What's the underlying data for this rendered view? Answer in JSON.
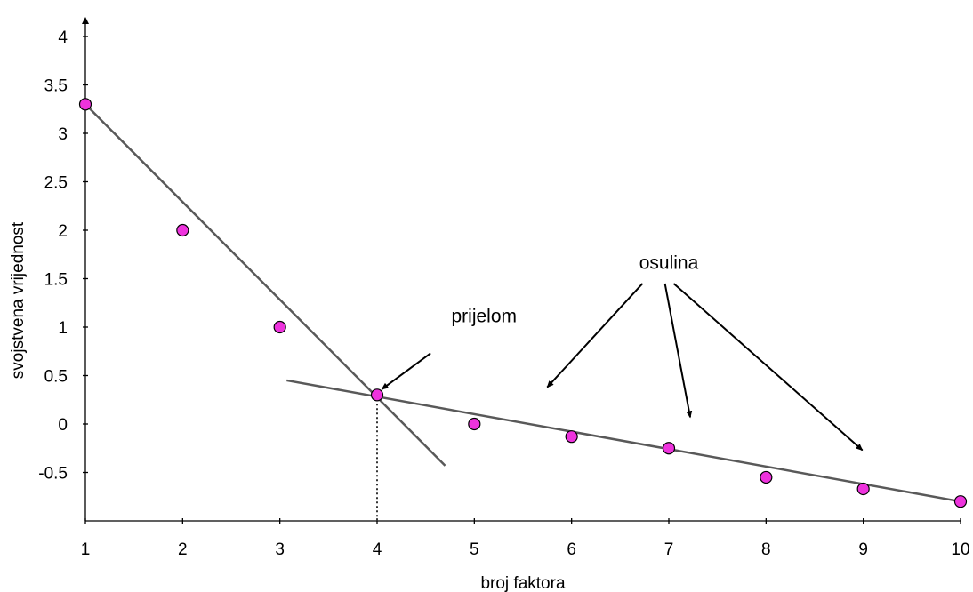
{
  "chart_data": {
    "type": "scatter",
    "xlabel": "broj faktora",
    "ylabel": "svojstvena vrijednost",
    "xlim": [
      1,
      10
    ],
    "ylim": [
      -1,
      4.3
    ],
    "x_ticks": [
      1,
      2,
      3,
      4,
      5,
      6,
      7,
      8,
      9,
      10
    ],
    "x_tick_labels": [
      "1",
      "2",
      "3",
      "4",
      "5",
      "6",
      "7",
      "8",
      "9",
      "10"
    ],
    "y_ticks": [
      -0.5,
      0,
      0.5,
      1,
      1.5,
      2,
      2.5,
      3,
      3.5,
      4
    ],
    "y_tick_labels": [
      "-0.5",
      "0",
      "0.5",
      "1",
      "1.5",
      "2",
      "2.5",
      "3",
      "3.5",
      "4"
    ],
    "grid": false,
    "points": [
      {
        "x": 1,
        "y": 3.3
      },
      {
        "x": 2,
        "y": 2.0
      },
      {
        "x": 3,
        "y": 1.0
      },
      {
        "x": 4,
        "y": 0.3
      },
      {
        "x": 5,
        "y": 0.0
      },
      {
        "x": 6,
        "y": -0.13
      },
      {
        "x": 7,
        "y": -0.25
      },
      {
        "x": 8,
        "y": -0.55
      },
      {
        "x": 9,
        "y": -0.67
      },
      {
        "x": 10,
        "y": -0.8
      }
    ],
    "trend_lines": [
      {
        "from": [
          1,
          3.3
        ],
        "to": [
          4.7,
          -0.43
        ]
      },
      {
        "from": [
          3.07,
          0.45
        ],
        "to": [
          10,
          -0.8
        ]
      }
    ],
    "reference_line": {
      "x": 4,
      "from_y": 0.3,
      "to_y": -1,
      "style": "dotted"
    },
    "annotations": [
      {
        "text": "prijelom",
        "text_at": [
          5.1,
          1.05
        ],
        "arrows": [
          {
            "from": [
              4.55,
              0.73
            ],
            "to": [
              4.05,
              0.36
            ]
          }
        ]
      },
      {
        "text": "osulina",
        "text_at": [
          7.0,
          1.6
        ],
        "arrows": [
          {
            "from": [
              6.73,
              1.45
            ],
            "to": [
              5.75,
              0.38
            ]
          },
          {
            "from": [
              6.96,
              1.45
            ],
            "to": [
              7.22,
              0.07
            ]
          },
          {
            "from": [
              7.05,
              1.45
            ],
            "to": [
              8.99,
              -0.27
            ]
          }
        ]
      }
    ],
    "colors": {
      "point_fill": "#ee33dd",
      "point_stroke": "#000000",
      "trend_line": "#595959",
      "axes": "#000000"
    }
  }
}
